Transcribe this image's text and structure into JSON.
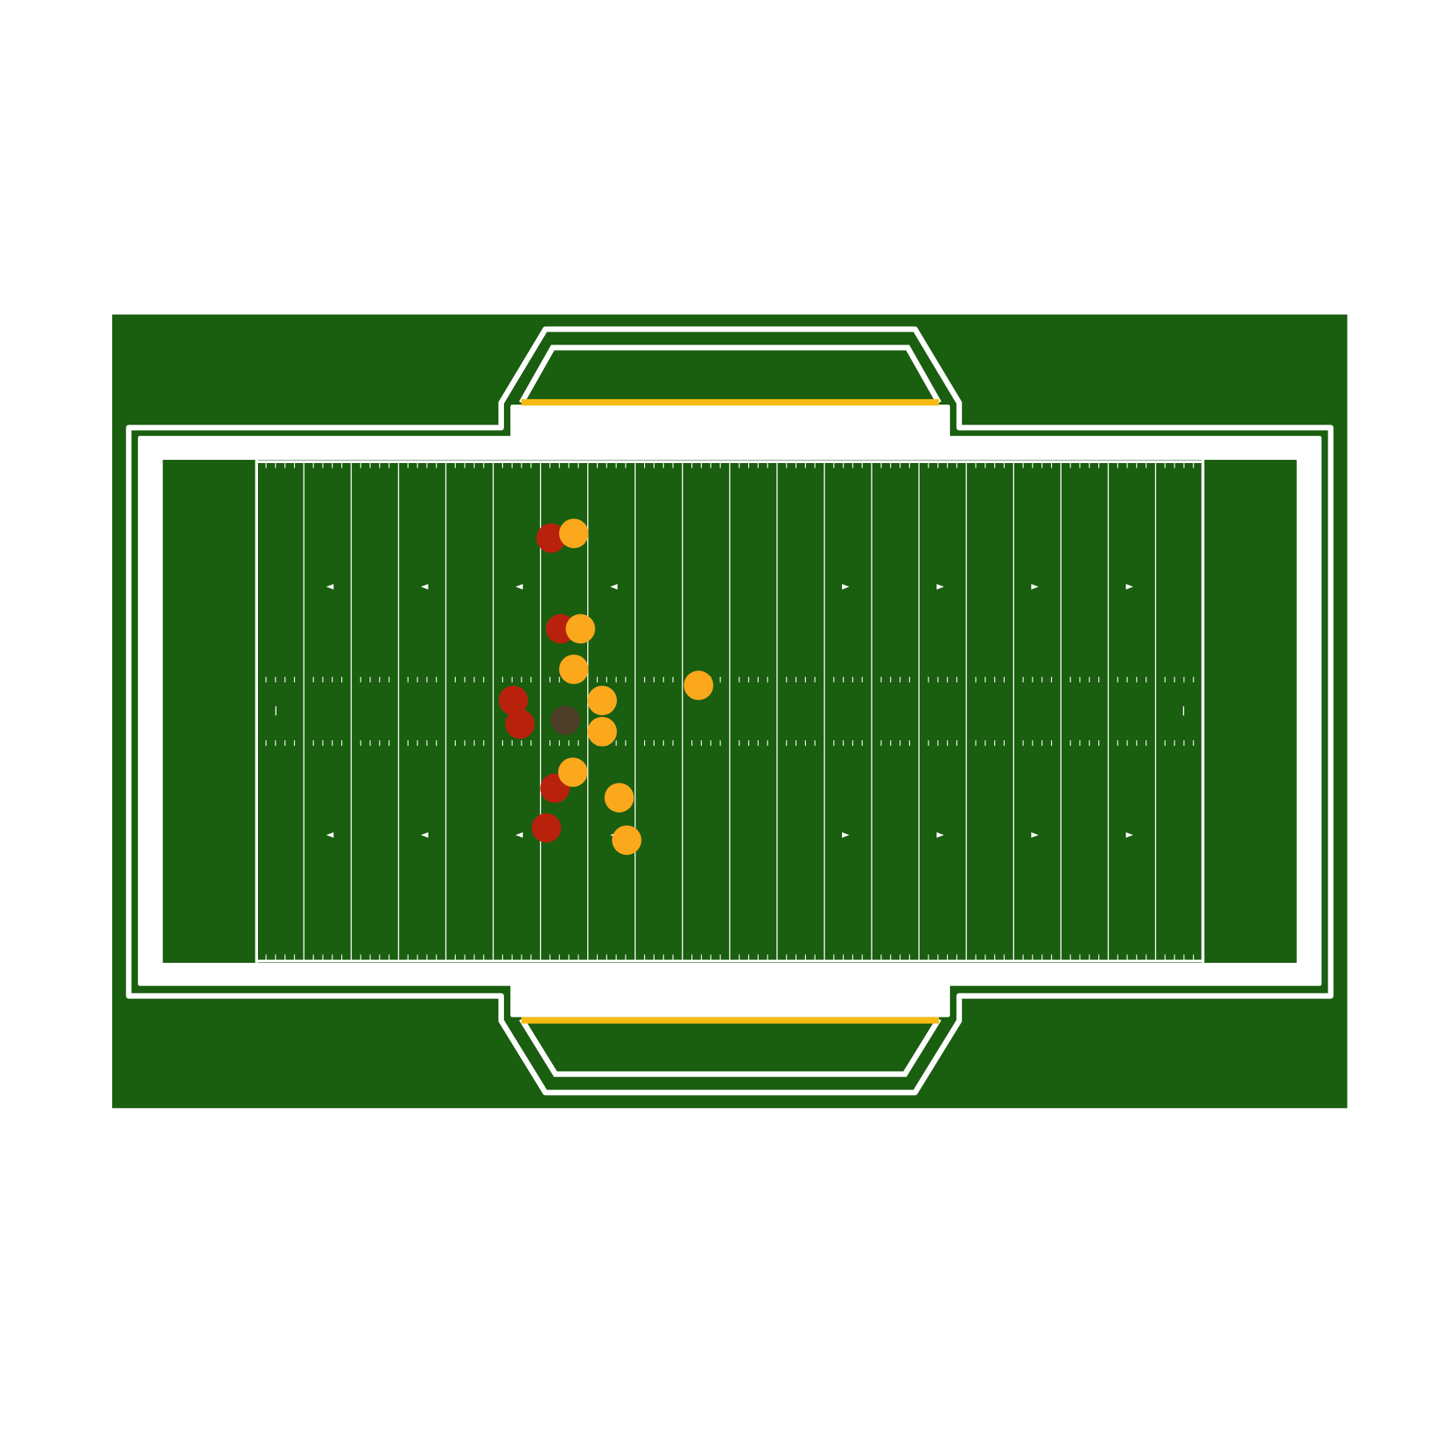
{
  "chart_data": {
    "type": "scatter",
    "xlim": [
      0,
      120
    ],
    "ylim": [
      0,
      53.3
    ],
    "series": [
      {
        "color": "#b8220c",
        "x": [
          41.1,
          42.1,
          37.1,
          37.8,
          41.5,
          40.6
        ],
        "y": [
          8.3,
          17.9,
          25.5,
          28.0,
          34.8,
          39.0
        ]
      },
      {
        "color": "#fca81d",
        "x": [
          43.5,
          44.2,
          43.5,
          46.5,
          46.5,
          43.4,
          48.3,
          49.1,
          56.7
        ],
        "y": [
          7.8,
          17.9,
          22.2,
          25.5,
          28.8,
          33.1,
          35.8,
          40.3,
          23.9
        ]
      },
      {
        "color": "#4d3f27",
        "x": [
          42.6
        ],
        "y": [
          27.6
        ]
      }
    ]
  }
}
